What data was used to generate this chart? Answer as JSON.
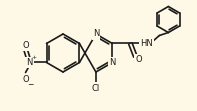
{
  "bg_color": "#FEF9E7",
  "line_color": "#1a1a1a",
  "bond_lw": 1.2,
  "font_size": 6.0,
  "font_size_small": 4.5,
  "figsize": [
    1.97,
    1.11
  ],
  "dpi": 100,
  "xlim": [
    0,
    197
  ],
  "ylim": [
    0,
    111
  ]
}
